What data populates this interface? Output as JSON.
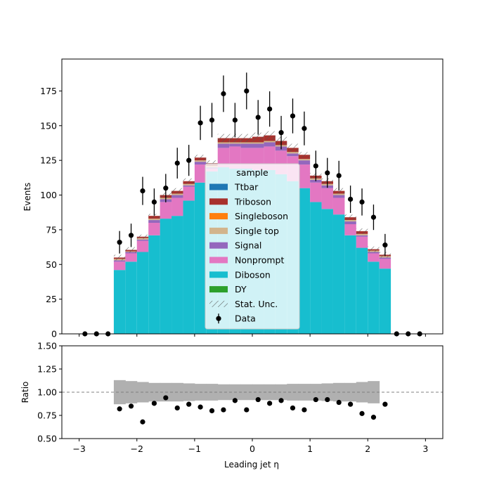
{
  "chart_data": {
    "type": "bar",
    "xlabel": "Leading jet  η",
    "ylabel_main": "Events",
    "ylabel_ratio": "Ratio",
    "xlim": [
      -3.3,
      3.3
    ],
    "ylim_main": [
      0,
      198
    ],
    "ylim_ratio": [
      0.5,
      1.5
    ],
    "x_ticks": [
      -3,
      -2,
      -1,
      0,
      1,
      2,
      3
    ],
    "x_tick_labels": [
      "−3",
      "−2",
      "−1",
      "0",
      "1",
      "2",
      "3"
    ],
    "y_ticks_main": [
      0,
      25,
      50,
      75,
      100,
      125,
      150,
      175
    ],
    "y_ticks_ratio": [
      0.5,
      0.75,
      1.0,
      1.25,
      1.5
    ],
    "y_tick_labels_ratio": [
      "0.50",
      "0.75",
      "1.00",
      "1.25",
      "1.50"
    ],
    "ratio_reference_line": 1.0,
    "bin_edges": [
      -2.4,
      -2.2,
      -2.0,
      -1.8,
      -1.6,
      -1.4,
      -1.2,
      -1.0,
      -0.8,
      -0.6,
      -0.4,
      -0.2,
      0.0,
      0.2,
      0.4,
      0.6,
      0.8,
      1.0,
      1.2,
      1.4,
      1.6,
      1.8,
      2.0,
      2.2,
      2.4
    ],
    "legend": {
      "title": "sample",
      "placement": "center",
      "entries": [
        {
          "label": "Ttbar",
          "color": "#1f77b4",
          "kind": "patch"
        },
        {
          "label": "Triboson",
          "color": "#a8312d",
          "kind": "patch"
        },
        {
          "label": "Singleboson",
          "color": "#ff7f0e",
          "kind": "patch"
        },
        {
          "label": "Single top",
          "color": "#d2b48c",
          "kind": "patch"
        },
        {
          "label": "Signal",
          "color": "#9467bd",
          "kind": "patch"
        },
        {
          "label": "Nonprompt",
          "color": "#e377c2",
          "kind": "patch"
        },
        {
          "label": "Diboson",
          "color": "#17becf",
          "kind": "patch"
        },
        {
          "label": "DY",
          "color": "#2ca02c",
          "kind": "patch"
        },
        {
          "label": "Stat. Unc.",
          "color": "#666666",
          "kind": "hatch"
        },
        {
          "label": "Data",
          "color": "#000000",
          "kind": "errorbar"
        }
      ]
    },
    "stack_order": [
      "Diboson",
      "Nonprompt",
      "Signal",
      "Single top",
      "Triboson"
    ],
    "series": [
      {
        "name": "Diboson",
        "color": "#17becf",
        "values": [
          46,
          52,
          59,
          71,
          83,
          85,
          96,
          109,
          117,
          120,
          119,
          119,
          118,
          118,
          115,
          110,
          105,
          95,
          90,
          86,
          71,
          62,
          52,
          47
        ]
      },
      {
        "name": "Nonprompt",
        "color": "#e377c2",
        "values": [
          6,
          6,
          8,
          9,
          12,
          13,
          10,
          13,
          2,
          14,
          16,
          15,
          16,
          17,
          17,
          18,
          17,
          14,
          15,
          12,
          8,
          8,
          6,
          7
        ]
      },
      {
        "name": "Signal",
        "color": "#9467bd",
        "values": [
          1,
          1,
          1,
          2,
          2,
          2,
          1,
          2,
          1,
          3,
          2,
          3,
          3,
          3,
          3,
          2,
          3,
          2,
          2,
          2,
          2,
          1,
          1,
          1
        ]
      },
      {
        "name": "Single top",
        "color": "#d2b48c",
        "values": [
          1,
          0.5,
          1,
          1,
          1,
          1,
          1,
          1,
          1,
          1,
          1,
          1,
          1,
          1,
          1,
          1,
          1,
          1,
          1,
          1,
          1,
          1,
          1,
          1
        ]
      },
      {
        "name": "Triboson",
        "color": "#a8312d",
        "values": [
          1,
          1,
          1,
          2,
          2,
          2,
          2,
          2,
          2,
          3,
          3,
          3,
          4,
          4,
          3,
          3,
          3,
          2,
          2,
          2,
          2,
          2,
          1,
          1
        ]
      }
    ],
    "stat_unc_halfwidth": [
      2,
      2,
      1.5,
      1.5,
      2,
      2,
      2,
      2,
      2,
      3,
      3,
      3,
      3,
      3,
      3,
      3,
      2,
      2,
      2,
      2,
      2,
      2,
      2,
      2
    ],
    "data": {
      "name": "Data",
      "x": [
        -2.9,
        -2.7,
        -2.5,
        -2.3,
        -2.1,
        -1.9,
        -1.7,
        -1.5,
        -1.3,
        -1.1,
        -0.9,
        -0.7,
        -0.5,
        -0.3,
        -0.1,
        0.1,
        0.3,
        0.5,
        0.7,
        0.9,
        1.1,
        1.3,
        1.5,
        1.7,
        1.9,
        2.1,
        2.3,
        2.5,
        2.7,
        2.9
      ],
      "y": [
        0,
        0,
        0,
        66,
        71,
        103,
        95,
        105,
        123,
        125,
        152,
        154,
        173,
        154,
        175,
        156,
        162,
        145,
        157,
        148,
        121,
        116,
        114,
        97,
        95,
        84,
        64,
        0,
        0,
        0
      ]
    },
    "ratio_band": {
      "x_range": [
        -2.4,
        2.2
      ],
      "halfwidth": [
        0.13,
        0.12,
        0.11,
        0.1,
        0.1,
        0.1,
        0.095,
        0.09,
        0.09,
        0.085,
        0.085,
        0.085,
        0.085,
        0.085,
        0.085,
        0.09,
        0.09,
        0.09,
        0.095,
        0.1,
        0.1,
        0.11,
        0.12
      ]
    },
    "ratio_points": {
      "x": [
        -2.3,
        -2.1,
        -1.9,
        -1.7,
        -1.5,
        -1.3,
        -1.1,
        -0.9,
        -0.7,
        -0.5,
        -0.3,
        -0.1,
        0.1,
        0.3,
        0.5,
        0.7,
        0.9,
        1.1,
        1.3,
        1.5,
        1.7,
        1.9,
        2.1,
        2.3
      ],
      "y": [
        0.82,
        0.85,
        0.68,
        0.88,
        0.94,
        0.83,
        0.87,
        0.84,
        0.8,
        0.81,
        0.91,
        0.81,
        0.92,
        0.88,
        0.91,
        0.83,
        0.81,
        0.92,
        0.92,
        0.89,
        0.87,
        0.77,
        0.73,
        0.87
      ]
    }
  }
}
